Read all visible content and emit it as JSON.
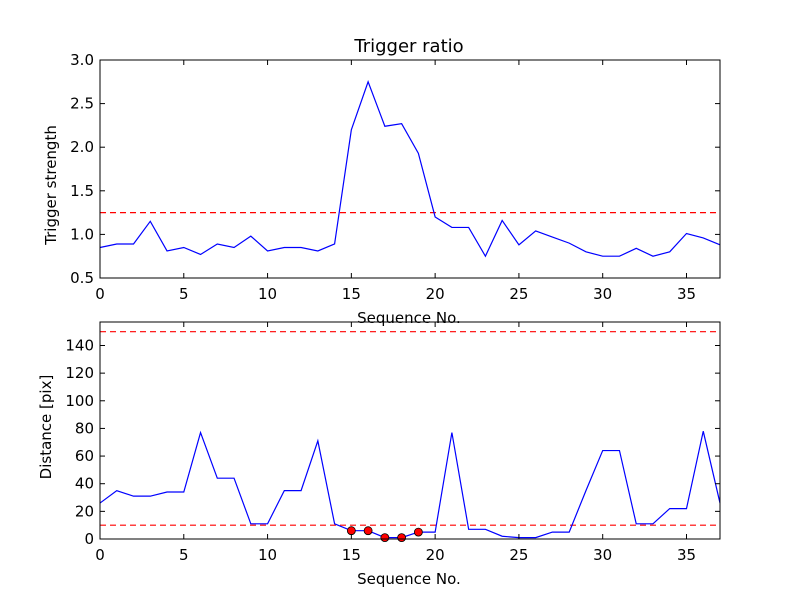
{
  "chart_data": [
    {
      "type": "line",
      "title": "Trigger ratio",
      "xlabel": "Sequence No.",
      "ylabel": "Trigger strength",
      "xlim": [
        0,
        37
      ],
      "ylim": [
        0.5,
        3.0
      ],
      "xticks": [
        "0",
        "5",
        "10",
        "15",
        "20",
        "25",
        "30",
        "35"
      ],
      "yticks": [
        "0.5",
        "1.0",
        "1.5",
        "2.0",
        "2.5",
        "3.0"
      ],
      "grid": false,
      "series": [
        {
          "color": "#0000ff",
          "x": [
            0,
            1,
            2,
            3,
            4,
            5,
            6,
            7,
            8,
            9,
            10,
            11,
            12,
            13,
            14,
            15,
            16,
            17,
            18,
            19,
            20,
            21,
            22,
            23,
            24,
            25,
            26,
            27,
            28,
            29,
            30,
            31,
            32,
            33,
            34,
            35,
            36,
            37
          ],
          "values": [
            0.85,
            0.89,
            0.89,
            1.15,
            0.81,
            0.85,
            0.77,
            0.89,
            0.85,
            0.98,
            0.81,
            0.85,
            0.85,
            0.81,
            0.89,
            2.2,
            2.75,
            2.24,
            2.27,
            1.93,
            1.2,
            1.08,
            1.08,
            0.75,
            1.16,
            0.88,
            1.04,
            0.97,
            0.9,
            0.8,
            0.75,
            0.75,
            0.84,
            0.75,
            0.8,
            1.01,
            0.96,
            0.88
          ]
        }
      ],
      "hlines": [
        {
          "y": 1.25,
          "color": "#ff0000",
          "style": "dashed"
        }
      ]
    },
    {
      "type": "line",
      "title": "",
      "xlabel": "Sequence No.",
      "ylabel": "Distance [pix]",
      "xlim": [
        0,
        37
      ],
      "ylim": [
        0,
        157
      ],
      "xticks": [
        "0",
        "5",
        "10",
        "15",
        "20",
        "25",
        "30",
        "35"
      ],
      "yticks": [
        "0",
        "20",
        "40",
        "60",
        "80",
        "100",
        "120",
        "140"
      ],
      "grid": false,
      "series": [
        {
          "color": "#0000ff",
          "x": [
            0,
            1,
            2,
            3,
            4,
            5,
            6,
            7,
            8,
            9,
            10,
            11,
            12,
            13,
            14,
            15,
            16,
            17,
            18,
            19,
            20,
            21,
            22,
            23,
            24,
            25,
            26,
            27,
            28,
            29,
            30,
            31,
            32,
            33,
            34,
            35,
            36,
            37
          ],
          "values": [
            26,
            35,
            31,
            31,
            34,
            34,
            77,
            44,
            44,
            11,
            11,
            35,
            35,
            71,
            11,
            6,
            6,
            1,
            1,
            5,
            5,
            77,
            7,
            7,
            2,
            1,
            1,
            5,
            5,
            35,
            64,
            64,
            11,
            11,
            22,
            22,
            78,
            26
          ]
        }
      ],
      "markers": {
        "color": "#ff0000",
        "x": [
          15,
          16,
          17,
          18,
          19
        ],
        "values": [
          6,
          6,
          1,
          1,
          5
        ]
      },
      "hlines": [
        {
          "y": 150,
          "color": "#ff0000",
          "style": "dashed"
        },
        {
          "y": 10,
          "color": "#ff0000",
          "style": "dashed"
        }
      ]
    }
  ]
}
